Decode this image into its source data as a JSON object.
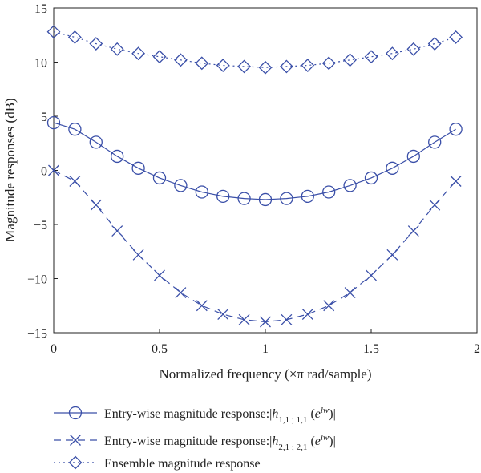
{
  "chart_data": {
    "type": "line",
    "xlabel": "Normalized frequency (×π rad/sample)",
    "ylabel": "Magnitude responses (dB)",
    "xlim": [
      0,
      2
    ],
    "ylim": [
      -15,
      15
    ],
    "x_ticks": [
      "0",
      "0.5",
      "1",
      "1.5",
      "2"
    ],
    "y_ticks": [
      "−15",
      "−10",
      "−5",
      "0",
      "5",
      "10",
      "15"
    ],
    "x": [
      0,
      0.1,
      0.2,
      0.3,
      0.4,
      0.5,
      0.6,
      0.7,
      0.8,
      0.9,
      1.0,
      1.1,
      1.2,
      1.3,
      1.4,
      1.5,
      1.6,
      1.7,
      1.8,
      1.9
    ],
    "color": "#3a4fa8",
    "grid": false,
    "legend_position": "bottom",
    "series": [
      {
        "legend_prefix": "Entry-wise magnitude response:|",
        "legend_h": "h",
        "legend_sub": "1,1 ; 1,1",
        "legend_arg": " (",
        "legend_e": "e",
        "legend_sup": "lw",
        "legend_suffix": ")|",
        "line_style": "solid",
        "marker": "circle",
        "values": [
          4.4,
          3.8,
          2.6,
          1.3,
          0.2,
          -0.7,
          -1.4,
          -2.0,
          -2.4,
          -2.6,
          -2.7,
          -2.6,
          -2.4,
          -2.0,
          -1.4,
          -0.7,
          0.2,
          1.3,
          2.6,
          3.8
        ]
      },
      {
        "legend_prefix": "Entry-wise magnitude response:|",
        "legend_h": "h",
        "legend_sub": "2,1 ; 2,1",
        "legend_arg": " (",
        "legend_e": "e",
        "legend_sup": "lw",
        "legend_suffix": ")|",
        "line_style": "dashed",
        "marker": "x",
        "values": [
          0.0,
          -1.0,
          -3.2,
          -5.6,
          -7.8,
          -9.7,
          -11.3,
          -12.5,
          -13.3,
          -13.8,
          -14.0,
          -13.8,
          -13.3,
          -12.5,
          -11.3,
          -9.7,
          -7.8,
          -5.6,
          -3.2,
          -1.0
        ]
      },
      {
        "legend_prefix": "Ensemble magnitude response",
        "line_style": "dotted",
        "marker": "diamond",
        "values": [
          12.8,
          12.3,
          11.7,
          11.2,
          10.8,
          10.5,
          10.2,
          9.9,
          9.7,
          9.6,
          9.5,
          9.6,
          9.7,
          9.9,
          10.2,
          10.5,
          10.8,
          11.2,
          11.7,
          12.3
        ]
      }
    ]
  }
}
